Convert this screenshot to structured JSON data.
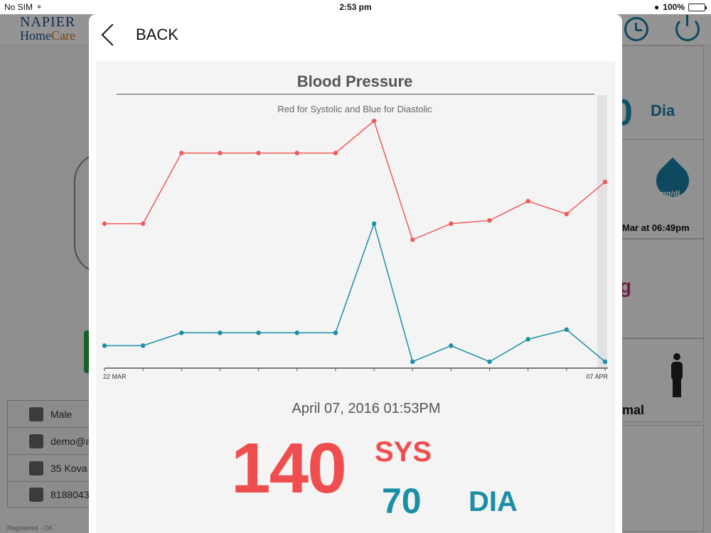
{
  "status_bar": {
    "carrier": "No SIM",
    "time": "2:53 pm",
    "battery": "100%",
    "battery_level": 1.0
  },
  "background": {
    "logo_line1": "NAPIER",
    "logo_line2_a": "Home",
    "logo_line2_b": "Care",
    "profile": [
      {
        "icon": "user-icon",
        "text": "Male"
      },
      {
        "icon": "mail-icon",
        "text": "demo@a"
      },
      {
        "icon": "home-icon",
        "text": "35 Kova"
      },
      {
        "icon": "phone-icon",
        "text": "8188043"
      }
    ],
    "registered_note": "Registered - OK",
    "dia_label": "Dia",
    "glucose_unit": "mg/dL",
    "glucose_date": "Mar at 06:49pm",
    "body_status": "mal"
  },
  "modal": {
    "back_label": "BACK",
    "reading": {
      "datetime": "April 07, 2016  01:53PM",
      "sys_value": "140",
      "sys_label": "SYS",
      "dia_value": "70",
      "dia_label": "DIA"
    }
  },
  "colors": {
    "systolic": "#f05a5a",
    "diastolic": "#1b8fa6",
    "axis": "#555555"
  },
  "chart_data": {
    "type": "line",
    "title": "Blood Pressure",
    "subtitle": "Red for Systolic and Blue for Diastolic",
    "x_tick_labels": [
      "22 MAR",
      "07 APR"
    ],
    "point_count": 14,
    "series": [
      {
        "color": "#f05a5a",
        "values": [
          120,
          120,
          142,
          142,
          142,
          142,
          142,
          152,
          115,
          120,
          121,
          127,
          123,
          133
        ]
      },
      {
        "color": "#1b8fa6",
        "values": [
          82,
          82,
          86,
          86,
          86,
          86,
          86,
          120,
          77,
          82,
          77,
          84,
          87,
          77
        ]
      }
    ],
    "ylim": [
      75,
      160
    ],
    "grid": false,
    "legend": "none"
  }
}
